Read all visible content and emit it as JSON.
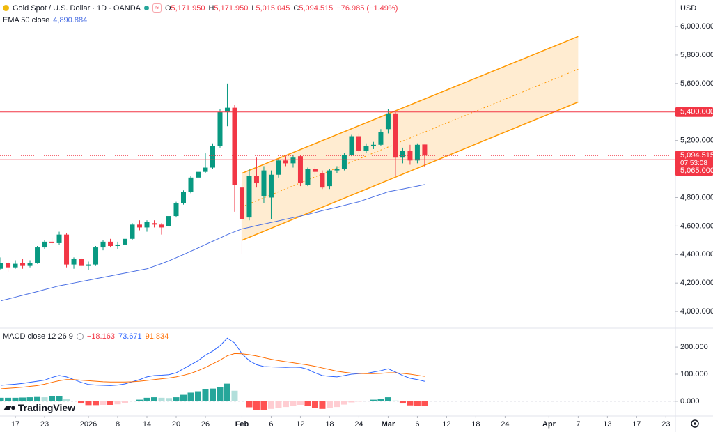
{
  "chart_data": [
    {
      "type": "candlestick",
      "title": "Gold Spot / U.S. Dollar · 1D · OANDA",
      "ohlc_labels": [
        {
          "label": "O",
          "value": "5,171.950"
        },
        {
          "label": "H",
          "value": "5,171.950"
        },
        {
          "label": "L",
          "value": "5,015.045"
        },
        {
          "label": "C",
          "value": "5,094.515"
        }
      ],
      "change": "−76.985 (−1.49%)",
      "currency": "USD",
      "up_color": "#089981",
      "down_color": "#f23645",
      "open": [
        4300,
        4340,
        4310,
        4340,
        4320,
        4340,
        4450,
        4490,
        4480,
        4540,
        4330,
        4370,
        4320,
        4330,
        4450,
        4490,
        4460,
        4470,
        4510,
        4610,
        4590,
        4620,
        4610,
        4600,
        4670,
        4760,
        4840,
        4940,
        4980,
        5010,
        5160,
        5400,
        5430,
        4870,
        4660,
        4950,
        4810,
        4800,
        4960,
        5060,
        5040,
        5090,
        4890,
        5000,
        4970,
        4880,
        4990,
        5000,
        5100,
        5230,
        5130,
        5160,
        5170,
        5280,
        5390,
        5080,
        5130,
        5060,
        5171.95
      ],
      "high": [
        4380,
        4350,
        4360,
        4370,
        4360,
        4460,
        4500,
        4520,
        4560,
        4550,
        4380,
        4380,
        4350,
        4460,
        4500,
        4510,
        4490,
        4520,
        4620,
        4640,
        4640,
        4640,
        4620,
        4680,
        4770,
        4850,
        4950,
        4990,
        5110,
        5180,
        5420,
        5600,
        5450,
        4900,
        5000,
        5080,
        5020,
        4990,
        5070,
        5090,
        5100,
        5100,
        5010,
        5020,
        4990,
        5000,
        5020,
        5110,
        5240,
        5250,
        5180,
        5190,
        5280,
        5420,
        5400,
        5150,
        5170,
        5180,
        5171.95
      ],
      "low": [
        4290,
        4280,
        4300,
        4300,
        4310,
        4335,
        4440,
        4470,
        4470,
        4310,
        4300,
        4300,
        4290,
        4320,
        4430,
        4450,
        4440,
        4460,
        4500,
        4570,
        4560,
        4590,
        4540,
        4590,
        4660,
        4750,
        4830,
        4920,
        4970,
        5000,
        5150,
        5300,
        4700,
        4400,
        4640,
        4870,
        4760,
        4650,
        4940,
        5020,
        5010,
        4880,
        4880,
        4960,
        4860,
        4860,
        4970,
        4990,
        5090,
        5110,
        5110,
        5140,
        5160,
        5250,
        4950,
        5040,
        5030,
        5040,
        5015.045
      ],
      "close": [
        4340,
        4310,
        4335,
        4320,
        4340,
        4450,
        4490,
        4480,
        4540,
        4330,
        4370,
        4320,
        4330,
        4450,
        4490,
        4460,
        4470,
        4510,
        4610,
        4590,
        4630,
        4610,
        4590,
        4670,
        4760,
        4840,
        4940,
        4980,
        5010,
        5160,
        5400,
        5430,
        4890,
        4650,
        4950,
        4900,
        4990,
        4960,
        5060,
        5040,
        5080,
        4900,
        5000,
        4980,
        4870,
        4990,
        5000,
        5100,
        5230,
        5130,
        5160,
        5170,
        5260,
        5390,
        5080,
        5130,
        5060,
        5170,
        5094.515
      ],
      "series": [
        {
          "name": "EMA 50 close",
          "value_label": "4,890.884",
          "color": "#4a6fe3",
          "values": [
            4075,
            4088,
            4101,
            4114,
            4127,
            4140,
            4154,
            4167,
            4180,
            4190,
            4200,
            4210,
            4220,
            4230,
            4240,
            4250,
            4260,
            4270,
            4280,
            4290,
            4300,
            4318,
            4336,
            4356,
            4378,
            4400,
            4423,
            4446,
            4470,
            4493,
            4516,
            4540,
            4560,
            4580,
            4591,
            4603,
            4614,
            4625,
            4636,
            4648,
            4659,
            4670,
            4682,
            4695,
            4708,
            4720,
            4732,
            4745,
            4758,
            4770,
            4788,
            4805,
            4822,
            4840,
            4850,
            4860,
            4870,
            4880,
            4890.884
          ]
        }
      ],
      "channel": {
        "color": "#ff9800",
        "start": 33,
        "end": 79,
        "upper": [
          4970,
          5930
        ],
        "lower": [
          4500,
          5470
        ]
      },
      "hlines": [
        {
          "value": 5400,
          "label": "5,400.000",
          "color": "#f23645"
        },
        {
          "value": 5065,
          "label": "5,065.000",
          "color": "#f23645"
        }
      ],
      "last_price": {
        "value": 5094.515,
        "label": "5,094.515",
        "countdown": "07:53:08",
        "color": "#f23645"
      },
      "ylim": [
        3888,
        6186
      ],
      "yticks": [
        {
          "value": 4000,
          "label": "4,000.000"
        },
        {
          "value": 4200,
          "label": "4,200.000"
        },
        {
          "value": 4400,
          "label": "4,400.000"
        },
        {
          "value": 4600,
          "label": "4,600.000"
        },
        {
          "value": 4800,
          "label": "4,800.000"
        },
        {
          "value": 5000,
          "label": "5,000.000"
        },
        {
          "value": 5200,
          "label": "5,200.000"
        },
        {
          "value": 5400,
          "label": "5,400.000"
        },
        {
          "value": 5600,
          "label": "5,600.000"
        },
        {
          "value": 5800,
          "label": "5,800.000"
        },
        {
          "value": 6000,
          "label": "6,000.000"
        }
      ],
      "xlim": [
        -0.1,
        92.3
      ],
      "xticks": [
        {
          "value": 2,
          "label": "17"
        },
        {
          "value": 6,
          "label": "23"
        },
        {
          "value": 12,
          "label": "2026"
        },
        {
          "value": 16,
          "label": "8"
        },
        {
          "value": 20,
          "label": "14"
        },
        {
          "value": 24,
          "label": "20"
        },
        {
          "value": 28,
          "label": "26"
        },
        {
          "value": 33,
          "label": "Feb"
        },
        {
          "value": 37,
          "label": "6"
        },
        {
          "value": 41,
          "label": "12"
        },
        {
          "value": 45,
          "label": "18"
        },
        {
          "value": 49,
          "label": "24"
        },
        {
          "value": 53,
          "label": "Mar"
        },
        {
          "value": 57,
          "label": "6"
        },
        {
          "value": 61,
          "label": "12"
        },
        {
          "value": 65,
          "label": "18"
        },
        {
          "value": 69,
          "label": "24"
        },
        {
          "value": 75,
          "label": "Apr"
        },
        {
          "value": 79,
          "label": "7"
        },
        {
          "value": 83,
          "label": "13"
        },
        {
          "value": 87,
          "label": "17"
        },
        {
          "value": 91,
          "label": "23"
        }
      ]
    },
    {
      "type": "macd",
      "title": "MACD close 12 26 9",
      "brand": "TradingView",
      "series": [
        {
          "style": "histogram",
          "value_label": "−18.163",
          "color": "#f23645",
          "colors": [
            "#26a69a",
            "#b2dfdb",
            "#ff5252",
            "#ffcdd2"
          ],
          "values": [
            13,
            13,
            13,
            14,
            15,
            16,
            15,
            18,
            19,
            10,
            0,
            -8,
            -14,
            -14,
            -13,
            -13,
            -11,
            -7,
            0,
            6,
            13,
            15,
            13,
            12,
            15,
            24,
            32,
            37,
            45,
            47,
            53,
            65,
            39,
            0,
            -22,
            -32,
            -33,
            -28,
            -24,
            -21,
            -16,
            -13,
            -16,
            -24,
            -28,
            -25,
            -21,
            -12,
            -4,
            -1,
            1,
            6,
            10,
            15,
            3,
            -8,
            -15,
            -16,
            -18.163
          ]
        },
        {
          "style": "line",
          "value_label": "73.671",
          "color": "#2962ff",
          "values": [
            59,
            61,
            63,
            66,
            70,
            74,
            78,
            88,
            95,
            90,
            80,
            70,
            62,
            60,
            59,
            58,
            60,
            64,
            72,
            80,
            90,
            95,
            96,
            98,
            105,
            120,
            135,
            150,
            170,
            185,
            205,
            233,
            215,
            175,
            150,
            135,
            128,
            127,
            126,
            125,
            126,
            125,
            118,
            105,
            95,
            92,
            90,
            95,
            100,
            102,
            103,
            108,
            113,
            120,
            108,
            95,
            85,
            80,
            73.671
          ]
        },
        {
          "style": "line",
          "value_label": "91.834",
          "color": "#ff6d00",
          "values": [
            46,
            48,
            50,
            52,
            55,
            58,
            63,
            70,
            76,
            80,
            80,
            78,
            76,
            74,
            72,
            71,
            71,
            71,
            72,
            74,
            77,
            80,
            83,
            86,
            90,
            96,
            103,
            113,
            125,
            138,
            152,
            168,
            176,
            175,
            172,
            167,
            161,
            155,
            150,
            146,
            142,
            138,
            134,
            129,
            123,
            117,
            111,
            107,
            104,
            103,
            102,
            102,
            103,
            105,
            105,
            103,
            100,
            96,
            91.834
          ]
        }
      ],
      "ylim": [
        -49,
        267
      ],
      "yticks": [
        {
          "value": 0,
          "label": "0.000"
        },
        {
          "value": 100,
          "label": "100.000"
        },
        {
          "value": 200,
          "label": "200.000"
        }
      ]
    }
  ]
}
